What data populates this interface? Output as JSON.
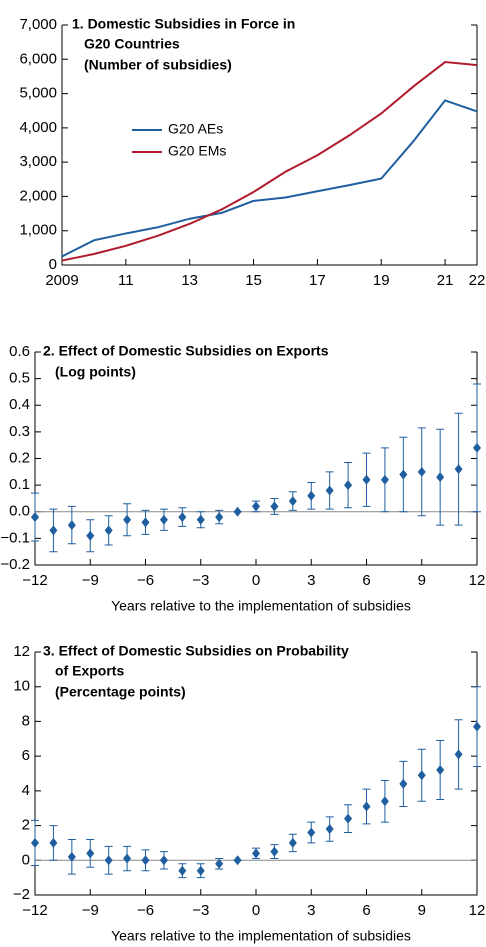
{
  "chart_data": [
    {
      "type": "line",
      "title": [
        "1. Domestic Subsidies in Force in",
        "G20 Countries"
      ],
      "subtitle": "(Number of subsidies)",
      "x": [
        2009,
        2010,
        2011,
        2012,
        2013,
        2014,
        2015,
        2016,
        2017,
        2018,
        2019,
        2020,
        2021,
        2022
      ],
      "series": [
        {
          "name": "G20 AEs",
          "color": "#1f5fa0",
          "values": [
            250,
            720,
            920,
            1100,
            1350,
            1520,
            1870,
            1970,
            2150,
            2330,
            2520,
            3600,
            4800,
            4480
          ]
        },
        {
          "name": "G20 EMs",
          "color": "#b01c2e",
          "values": [
            130,
            320,
            560,
            850,
            1200,
            1620,
            2130,
            2720,
            3200,
            3780,
            4420,
            5200,
            5920,
            5830
          ]
        }
      ],
      "xlim": [
        2009,
        2022
      ],
      "xticks": [
        2009,
        {
          "value": 2011,
          "label": "11"
        },
        {
          "value": 2013,
          "label": "13"
        },
        {
          "value": 2015,
          "label": "15"
        },
        {
          "value": 2017,
          "label": "17"
        },
        {
          "value": 2019,
          "label": "19"
        },
        {
          "value": 2021,
          "label": "21"
        },
        {
          "value": 2022,
          "label": "22"
        }
      ],
      "ylim": [
        0,
        7000
      ],
      "yticks": [
        0,
        {
          "value": 1000,
          "label": "1,000"
        },
        {
          "value": 2000,
          "label": "2,000"
        },
        {
          "value": 3000,
          "label": "3,000"
        },
        {
          "value": 4000,
          "label": "4,000"
        },
        {
          "value": 5000,
          "label": "5,000"
        },
        {
          "value": 6000,
          "label": "6,000"
        },
        {
          "value": 7000,
          "label": "7,000"
        }
      ],
      "legend": "center left"
    },
    {
      "type": "scatter",
      "title": [
        "2. Effect of Domestic Subsidies on Exports"
      ],
      "subtitle": "(Log points)",
      "x_label": "Years relative to the implementation of subsidies",
      "color": "#1f5fa0",
      "x": [
        -12,
        -11,
        -10,
        -9,
        -8,
        -7,
        -6,
        -5,
        -4,
        -3,
        -2,
        -1,
        0,
        1,
        2,
        3,
        4,
        5,
        6,
        7,
        8,
        9,
        10,
        11,
        12
      ],
      "values": [
        -0.02,
        -0.07,
        -0.05,
        -0.09,
        -0.07,
        -0.03,
        -0.04,
        -0.03,
        -0.02,
        -0.03,
        -0.02,
        0,
        0.02,
        0.02,
        0.04,
        0.06,
        0.08,
        0.1,
        0.12,
        0.12,
        0.14,
        0.15,
        0.13,
        0.16,
        0.24
      ],
      "errors": [
        0.09,
        0.08,
        0.07,
        0.06,
        0.055,
        0.06,
        0.045,
        0.04,
        0.035,
        0.03,
        0.025,
        0,
        0.02,
        0.03,
        0.035,
        0.05,
        0.07,
        0.085,
        0.1,
        0.12,
        0.14,
        0.165,
        0.18,
        0.21,
        0.24
      ],
      "xlim": [
        -12,
        12
      ],
      "xticks": [
        {
          "value": -12,
          "label": "−12"
        },
        {
          "value": -9,
          "label": "−9"
        },
        {
          "value": -6,
          "label": "−6"
        },
        {
          "value": -3,
          "label": "−3"
        },
        0,
        3,
        6,
        9,
        12
      ],
      "ylim": [
        -0.2,
        0.6
      ],
      "yticks": [
        {
          "value": -0.2,
          "label": "−0.2"
        },
        {
          "value": -0.1,
          "label": "−0.1"
        },
        {
          "value": 0,
          "label": "0.0"
        },
        0.1,
        0.2,
        0.3,
        0.4,
        0.5,
        0.6
      ]
    },
    {
      "type": "scatter",
      "title": [
        "3. Effect of Domestic Subsidies on Probability",
        "of Exports"
      ],
      "subtitle": "(Percentage points)",
      "x_label": "Years relative to the implementation of subsidies",
      "color": "#1f5fa0",
      "x": [
        -12,
        -11,
        -10,
        -9,
        -8,
        -7,
        -6,
        -5,
        -4,
        -3,
        -2,
        -1,
        0,
        1,
        2,
        3,
        4,
        5,
        6,
        7,
        8,
        9,
        10,
        11,
        12
      ],
      "values": [
        1.0,
        1.0,
        0.2,
        0.4,
        0.0,
        0.1,
        0.0,
        0.0,
        -0.6,
        -0.6,
        -0.2,
        0,
        0.4,
        0.5,
        1.0,
        1.6,
        1.8,
        2.4,
        3.1,
        3.4,
        4.4,
        4.9,
        5.2,
        6.1,
        7.7
      ],
      "errors": [
        1.3,
        1.0,
        1.0,
        0.8,
        0.8,
        0.7,
        0.6,
        0.5,
        0.4,
        0.4,
        0.3,
        0,
        0.3,
        0.4,
        0.5,
        0.6,
        0.7,
        0.8,
        1.0,
        1.2,
        1.3,
        1.5,
        1.7,
        2.0,
        2.3
      ],
      "xlim": [
        -12,
        12
      ],
      "xticks": [
        {
          "value": -12,
          "label": "−12"
        },
        {
          "value": -9,
          "label": "−9"
        },
        {
          "value": -6,
          "label": "−6"
        },
        {
          "value": -3,
          "label": "−3"
        },
        0,
        3,
        6,
        9,
        12
      ],
      "ylim": [
        -2,
        12
      ],
      "yticks": [
        {
          "value": -2,
          "label": "−2"
        },
        0,
        2,
        4,
        6,
        8,
        10,
        12
      ]
    }
  ]
}
